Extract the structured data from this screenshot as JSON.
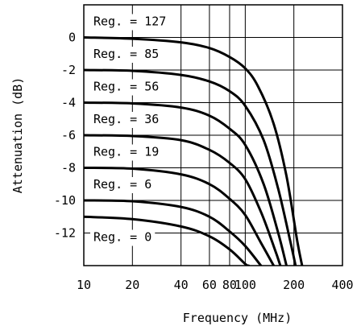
{
  "chart_data": {
    "type": "line",
    "title": "",
    "xlabel": "Frequency (MHz)",
    "ylabel": "Attenuation (dB)",
    "x_scale": "log",
    "xlim": [
      10,
      400
    ],
    "ylim": [
      -14,
      2
    ],
    "x_ticks": [
      10,
      20,
      40,
      60,
      80,
      100,
      200,
      400
    ],
    "x_tick_labels": [
      "10",
      "20",
      "40",
      "60",
      "80",
      "100",
      "200",
      "400"
    ],
    "y_ticks": [
      0,
      -2,
      -4,
      -6,
      -8,
      -10,
      -12
    ],
    "y_tick_labels": [
      "0",
      "-2",
      "-4",
      "-6",
      "-8",
      "-10",
      "-12"
    ],
    "x_grid_lines": [
      20,
      40,
      60,
      80,
      100,
      200
    ],
    "y_grid_lines": [
      0,
      -2,
      -4,
      -6,
      -8,
      -10,
      -12
    ],
    "grid": true,
    "legend": "none",
    "line_color": "#000000",
    "series": [
      {
        "name": "Reg. = 127",
        "points": [
          [
            10,
            0
          ],
          [
            20,
            -0.08
          ],
          [
            40,
            -0.3
          ],
          [
            60,
            -0.65
          ],
          [
            80,
            -1.2
          ],
          [
            100,
            -1.9
          ],
          [
            120,
            -3.0
          ],
          [
            150,
            -5.3
          ],
          [
            180,
            -8.5
          ],
          [
            210,
            -12.5
          ],
          [
            225,
            -14
          ]
        ]
      },
      {
        "name": "Reg. = 85",
        "points": [
          [
            10,
            -2
          ],
          [
            20,
            -2.05
          ],
          [
            40,
            -2.3
          ],
          [
            60,
            -2.7
          ],
          [
            80,
            -3.3
          ],
          [
            100,
            -4.2
          ],
          [
            130,
            -6.3
          ],
          [
            160,
            -9.3
          ],
          [
            190,
            -12.5
          ],
          [
            205,
            -14
          ]
        ]
      },
      {
        "name": "Reg. = 56",
        "points": [
          [
            10,
            -4
          ],
          [
            20,
            -4.05
          ],
          [
            40,
            -4.3
          ],
          [
            60,
            -4.8
          ],
          [
            80,
            -5.6
          ],
          [
            100,
            -6.6
          ],
          [
            130,
            -9.0
          ],
          [
            160,
            -12.0
          ],
          [
            180,
            -14
          ]
        ]
      },
      {
        "name": "Reg. = 36",
        "points": [
          [
            10,
            -6
          ],
          [
            20,
            -6.05
          ],
          [
            40,
            -6.3
          ],
          [
            60,
            -6.9
          ],
          [
            80,
            -7.7
          ],
          [
            100,
            -8.7
          ],
          [
            125,
            -10.7
          ],
          [
            150,
            -12.8
          ],
          [
            165,
            -14
          ]
        ]
      },
      {
        "name": "Reg. = 19",
        "points": [
          [
            10,
            -8
          ],
          [
            20,
            -8.05
          ],
          [
            40,
            -8.4
          ],
          [
            60,
            -9.0
          ],
          [
            80,
            -9.9
          ],
          [
            100,
            -10.9
          ],
          [
            125,
            -12.6
          ],
          [
            150,
            -14
          ]
        ]
      },
      {
        "name": "Reg. = 6",
        "points": [
          [
            10,
            -10
          ],
          [
            20,
            -10.05
          ],
          [
            40,
            -10.4
          ],
          [
            60,
            -11.0
          ],
          [
            80,
            -11.9
          ],
          [
            100,
            -12.8
          ],
          [
            125,
            -14
          ]
        ]
      },
      {
        "name": "Reg. = 0",
        "points": [
          [
            10,
            -11
          ],
          [
            20,
            -11.15
          ],
          [
            40,
            -11.6
          ],
          [
            60,
            -12.2
          ],
          [
            80,
            -13.0
          ],
          [
            100,
            -13.9
          ],
          [
            105,
            -14
          ]
        ]
      }
    ]
  }
}
